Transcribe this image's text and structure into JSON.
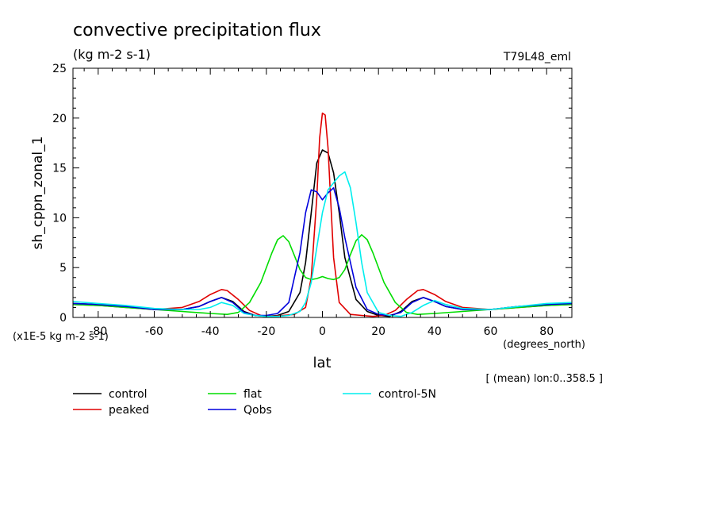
{
  "chart_data": {
    "type": "line",
    "title": "convective precipitation flux",
    "subtitle": "(kg m-2 s-1)",
    "run_label": "T79L48_eml",
    "xlabel": "lat",
    "x_units": "(degrees_north)",
    "ylabel": "sh_cppn_zonal_1",
    "y_scale_note": "(x1E-5 kg m-2 s-1)",
    "footnote": "[ (mean) lon:0..358.5 ]",
    "xlim": [
      -89,
      89
    ],
    "ylim": [
      0,
      25
    ],
    "xticks": [
      -80,
      -60,
      -40,
      -20,
      0,
      20,
      40,
      60,
      80
    ],
    "yticks": [
      0,
      5,
      10,
      15,
      20,
      25
    ],
    "grid": false,
    "legend_position": "bottom",
    "series": [
      {
        "name": "control",
        "color": "#000000",
        "x": [
          -89,
          -80,
          -70,
          -60,
          -50,
          -44,
          -40,
          -36,
          -32,
          -28,
          -24,
          -20,
          -16,
          -12,
          -8,
          -6,
          -4,
          -2,
          0,
          2,
          4,
          6,
          8,
          12,
          16,
          20,
          24,
          28,
          32,
          36,
          40,
          44,
          50,
          60,
          70,
          80,
          89
        ],
        "y": [
          1.4,
          1.3,
          1.1,
          0.8,
          0.8,
          1.1,
          1.6,
          2.0,
          1.6,
          0.6,
          0.2,
          0.1,
          0.2,
          0.6,
          2.5,
          5.5,
          10.5,
          15.5,
          16.8,
          16.5,
          14.5,
          10.5,
          6.0,
          1.8,
          0.6,
          0.2,
          0.1,
          0.6,
          1.6,
          2.0,
          1.6,
          1.1,
          0.8,
          0.8,
          1.1,
          1.3,
          1.4
        ]
      },
      {
        "name": "peaked",
        "color": "#e00000",
        "x": [
          -89,
          -80,
          -70,
          -60,
          -50,
          -44,
          -40,
          -36,
          -34,
          -30,
          -26,
          -22,
          -18,
          -14,
          -10,
          -6,
          -4,
          -2,
          -1,
          0,
          1,
          2,
          4,
          6,
          10,
          14,
          18,
          22,
          26,
          30,
          34,
          36,
          40,
          44,
          50,
          60,
          70,
          80,
          89
        ],
        "y": [
          1.3,
          1.2,
          1.0,
          0.8,
          1.0,
          1.6,
          2.3,
          2.8,
          2.7,
          1.8,
          0.7,
          0.2,
          0.1,
          0.2,
          0.3,
          1.0,
          4.0,
          12.0,
          18.0,
          20.5,
          20.3,
          17.0,
          6.0,
          1.5,
          0.3,
          0.2,
          0.1,
          0.2,
          0.7,
          1.8,
          2.7,
          2.8,
          2.3,
          1.6,
          1.0,
          0.8,
          1.0,
          1.2,
          1.3
        ]
      },
      {
        "name": "flat",
        "color": "#00dd00",
        "x": [
          -89,
          -80,
          -70,
          -60,
          -50,
          -40,
          -34,
          -30,
          -26,
          -22,
          -18,
          -16,
          -14,
          -12,
          -10,
          -8,
          -6,
          -4,
          -2,
          0,
          2,
          4,
          6,
          8,
          10,
          12,
          14,
          16,
          18,
          22,
          26,
          30,
          34,
          40,
          50,
          60,
          70,
          80,
          89
        ],
        "y": [
          1.3,
          1.2,
          1.0,
          0.8,
          0.6,
          0.4,
          0.3,
          0.5,
          1.5,
          3.5,
          6.5,
          7.8,
          8.2,
          7.6,
          6.2,
          4.8,
          4.0,
          3.8,
          3.9,
          4.1,
          3.9,
          3.8,
          4.0,
          4.8,
          6.3,
          7.7,
          8.3,
          7.8,
          6.5,
          3.5,
          1.5,
          0.5,
          0.3,
          0.4,
          0.6,
          0.8,
          1.0,
          1.2,
          1.3
        ]
      },
      {
        "name": "Qobs",
        "color": "#0000dd",
        "x": [
          -89,
          -80,
          -70,
          -60,
          -50,
          -44,
          -40,
          -36,
          -32,
          -28,
          -24,
          -20,
          -16,
          -12,
          -8,
          -6,
          -4,
          -2,
          0,
          2,
          4,
          6,
          8,
          12,
          16,
          20,
          24,
          28,
          32,
          36,
          40,
          44,
          50,
          60,
          70,
          80,
          89
        ],
        "y": [
          1.4,
          1.3,
          1.1,
          0.8,
          0.8,
          1.1,
          1.6,
          2.0,
          1.5,
          0.5,
          0.2,
          0.2,
          0.4,
          1.5,
          6.5,
          10.5,
          12.8,
          12.6,
          11.8,
          12.5,
          13.0,
          11.0,
          8.0,
          3.0,
          0.8,
          0.3,
          0.2,
          0.5,
          1.5,
          2.0,
          1.6,
          1.1,
          0.8,
          0.8,
          1.1,
          1.3,
          1.4
        ]
      },
      {
        "name": "control-5N",
        "color": "#00eeee",
        "x": [
          -89,
          -80,
          -70,
          -60,
          -50,
          -44,
          -40,
          -36,
          -32,
          -28,
          -24,
          -20,
          -16,
          -12,
          -8,
          -6,
          -4,
          -2,
          0,
          2,
          4,
          6,
          8,
          10,
          12,
          14,
          16,
          20,
          24,
          28,
          32,
          36,
          40,
          44,
          50,
          60,
          70,
          80,
          89
        ],
        "y": [
          1.6,
          1.4,
          1.2,
          0.9,
          0.8,
          0.8,
          1.0,
          1.5,
          1.2,
          0.4,
          0.2,
          0.1,
          0.1,
          0.2,
          0.6,
          1.5,
          3.5,
          7.0,
          10.5,
          12.8,
          13.5,
          14.2,
          14.6,
          13.0,
          9.5,
          5.5,
          2.5,
          0.5,
          0.2,
          0.1,
          0.5,
          1.2,
          1.7,
          1.3,
          0.9,
          0.8,
          1.1,
          1.4,
          1.5
        ]
      }
    ]
  }
}
